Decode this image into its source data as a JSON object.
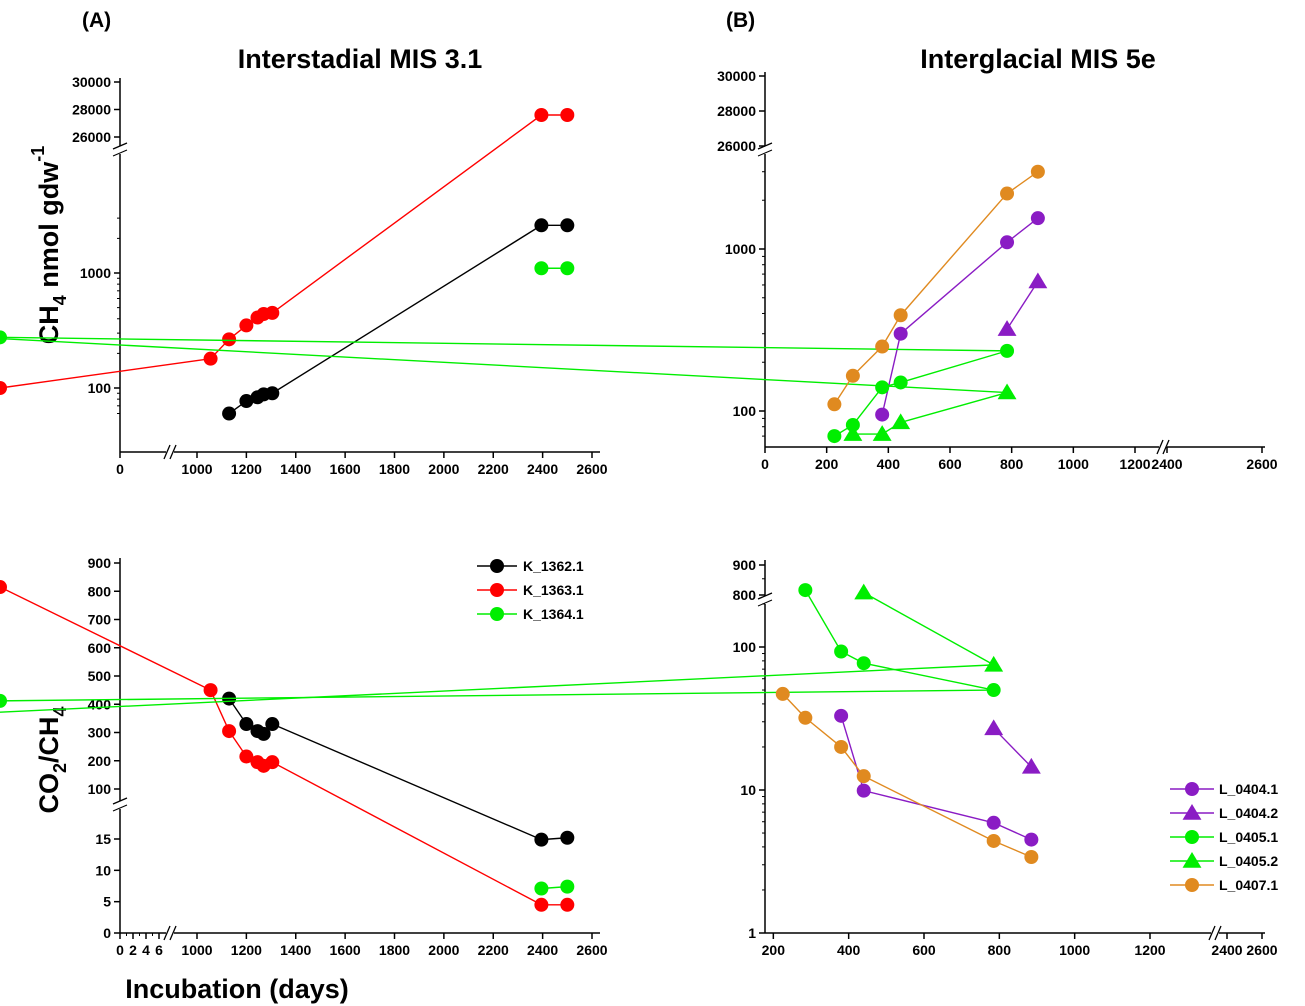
{
  "labels": {
    "panel_a": "(A)",
    "panel_b": "(B)",
    "title_a": "Interstadial MIS 3.1",
    "title_b": "Interglacial MIS 5e",
    "ylabel_top_main": "CH",
    "ylabel_top_sub": "4",
    "ylabel_top_rest": " nmol gdw",
    "ylabel_top_sup": "-1",
    "ylabel_bot_a": "CO",
    "ylabel_bot_sub_a": "2",
    "ylabel_bot_b": "/CH",
    "ylabel_bot_sub_b": "4",
    "xlabel": "Incubation (days)"
  },
  "colors": {
    "K_1362.1": "#000000",
    "K_1363.1": "#ff0000",
    "K_1364.1": "#00ee00",
    "L_0404.1": "#8a1cc4",
    "L_0404.2": "#8a1cc4",
    "L_0405.1": "#00ee00",
    "L_0405.2": "#00ee00",
    "L_0407.1": "#e08a20"
  },
  "chart_data": [
    {
      "panel": "A-top",
      "type": "scatter",
      "title": "Interstadial MIS 3.1",
      "ylabel": "CH4 nmol gdw-1",
      "yscale": "log, broken",
      "x_ticks": [
        "0",
        "1000",
        "1200",
        "1400",
        "1600",
        "1800",
        "2000",
        "2200",
        "2400",
        "2600"
      ],
      "y_ticks_upper": [
        "26000",
        "28000",
        "30000"
      ],
      "y_ticks_lower": [
        "100",
        "1000"
      ],
      "series": [
        {
          "name": "K_1362.1",
          "marker": "circle",
          "x": [
            1130,
            1200,
            1245,
            1270,
            1305,
            2395,
            2500
          ],
          "y": [
            60,
            77,
            83,
            88,
            90,
            2600,
            2600
          ]
        },
        {
          "name": "K_1363.1",
          "marker": "circle",
          "x": [
            965,
            1055,
            1130,
            1200,
            1245,
            1270,
            1305,
            2395,
            2500
          ],
          "y": [
            100,
            180,
            265,
            350,
            410,
            440,
            450,
            27600,
            27600
          ]
        },
        {
          "name": "K_1364.1",
          "marker": "circle",
          "x": [
            2395,
            2500
          ],
          "y": [
            1100,
            1100
          ]
        }
      ]
    },
    {
      "panel": "B-top",
      "type": "scatter",
      "title": "Interglacial MIS 5e",
      "yscale": "log, broken",
      "x_ticks": [
        "0",
        "200",
        "400",
        "600",
        "800",
        "1000",
        "1200",
        "2400",
        "2600"
      ],
      "y_ticks_upper": [
        "26000",
        "28000",
        "30000"
      ],
      "y_ticks_lower": [
        "100",
        "1000"
      ],
      "series": [
        {
          "name": "L_0404.1",
          "marker": "circle",
          "x": [
            380,
            440,
            785,
            885
          ],
          "y": [
            95,
            300,
            1100,
            1550
          ]
        },
        {
          "name": "L_0404.2",
          "marker": "triangle",
          "x": [
            785,
            885
          ],
          "y": [
            320,
            630
          ]
        },
        {
          "name": "L_0405.1",
          "marker": "circle",
          "x": [
            225,
            285,
            380,
            440,
            785,
            1225
          ],
          "y": [
            70,
            82,
            140,
            150,
            235,
            285
          ]
        },
        {
          "name": "L_0405.2",
          "marker": "triangle",
          "x": [
            285,
            380,
            440,
            785,
            1225
          ],
          "y": [
            72,
            72,
            85,
            130,
            280
          ]
        },
        {
          "name": "L_0407.1",
          "marker": "circle",
          "x": [
            225,
            285,
            380,
            440,
            785,
            885
          ],
          "y": [
            110,
            165,
            250,
            390,
            2200,
            3000
          ]
        }
      ]
    },
    {
      "panel": "A-bottom",
      "type": "scatter",
      "ylabel": "CO2/CH4",
      "xlabel": "Incubation (days)",
      "yscale": "linear, broken",
      "x_ticks": [
        "0",
        "2",
        "4",
        "6",
        "1000",
        "1200",
        "1400",
        "1600",
        "1800",
        "2000",
        "2200",
        "2400",
        "2600"
      ],
      "y_ticks_upper": [
        "100",
        "200",
        "300",
        "400",
        "500",
        "600",
        "700",
        "800",
        "900"
      ],
      "y_ticks_lower": [
        "0",
        "5",
        "10",
        "15"
      ],
      "legend": {
        "position": "top-right",
        "entries": [
          "K_1362.1",
          "K_1363.1",
          "K_1364.1"
        ]
      },
      "series": [
        {
          "name": "K_1362.1",
          "marker": "circle",
          "x": [
            1130,
            1200,
            1245,
            1270,
            1305,
            2395,
            2500
          ],
          "y": [
            420,
            330,
            305,
            295,
            330,
            14.9,
            15.2
          ]
        },
        {
          "name": "K_1363.1",
          "marker": "circle",
          "x": [
            965,
            1055,
            1130,
            1200,
            1245,
            1270,
            1305,
            2395,
            2500
          ],
          "y": [
            815,
            450,
            305,
            215,
            195,
            182,
            195,
            4.5,
            4.5
          ]
        },
        {
          "name": "K_1364.1",
          "marker": "circle",
          "x": [
            2395,
            2500
          ],
          "y": [
            7.1,
            7.4
          ]
        }
      ]
    },
    {
      "panel": "B-bottom",
      "type": "scatter",
      "yscale": "log, broken",
      "x_ticks": [
        "200",
        "400",
        "600",
        "800",
        "1000",
        "1200",
        "2400",
        "2600"
      ],
      "y_ticks_upper": [
        "800",
        "900"
      ],
      "y_ticks_lower": [
        "1",
        "10",
        "100"
      ],
      "legend": {
        "position": "bottom-right",
        "entries": [
          "L_0404.1",
          "L_0404.2",
          "L_0405.1",
          "L_0405.2",
          "L_0407.1"
        ]
      },
      "series": [
        {
          "name": "L_0404.1",
          "marker": "circle",
          "x": [
            380,
            440,
            785,
            885
          ],
          "y": [
            33,
            9.9,
            5.9,
            4.5
          ]
        },
        {
          "name": "L_0404.2",
          "marker": "triangle",
          "x": [
            785,
            885
          ],
          "y": [
            27,
            14.5
          ]
        },
        {
          "name": "L_0405.1",
          "marker": "circle",
          "x": [
            285,
            380,
            440,
            785,
            1225
          ],
          "y": [
            250,
            93,
            77,
            50,
            42
          ]
        },
        {
          "name": "L_0405.2",
          "marker": "triangle",
          "x": [
            440,
            785,
            1225
          ],
          "y": [
            240,
            75,
            35
          ]
        },
        {
          "name": "L_0407.1",
          "marker": "circle",
          "x": [
            225,
            285,
            380,
            440,
            785,
            885
          ],
          "y": [
            47,
            32,
            20,
            12.5,
            4.4,
            3.4
          ]
        }
      ]
    }
  ]
}
